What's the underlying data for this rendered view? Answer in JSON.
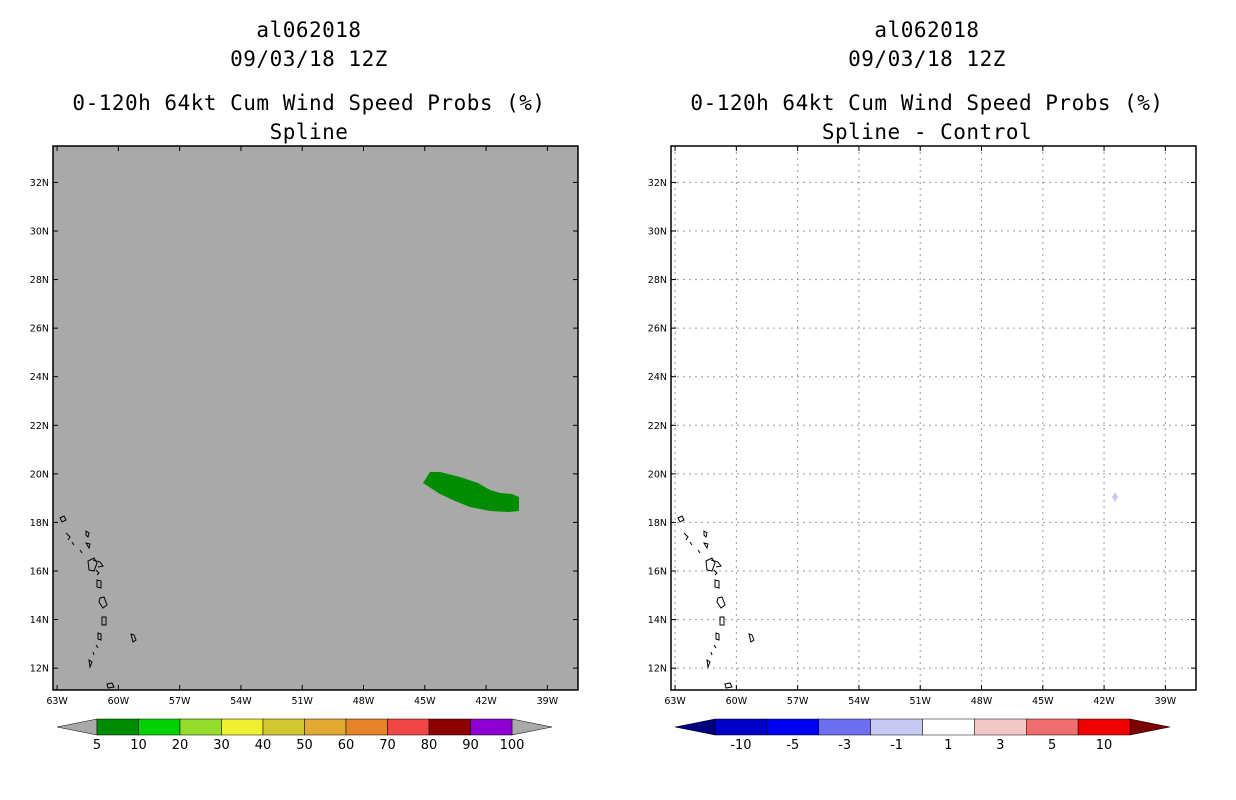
{
  "left_panel": {
    "storm_id": "al062018",
    "datetime": "09/03/18 12Z",
    "product": "0-120h 64kt Cum Wind Speed Probs (%)",
    "subtitle": "Spline",
    "background_color": "#a9a9a9",
    "colorbar_labels": [
      "5",
      "10",
      "20",
      "30",
      "40",
      "50",
      "60",
      "70",
      "80",
      "90",
      "100"
    ],
    "colorbar_colors": [
      "#008c00",
      "#00d200",
      "#96dc2d",
      "#f0f032",
      "#d2c832",
      "#e1aa32",
      "#e68228",
      "#f04646",
      "#8c0000",
      "#8c00d2"
    ],
    "probability_feature_color": "#008c00"
  },
  "right_panel": {
    "storm_id": "al062018",
    "datetime": "09/03/18 12Z",
    "product": "0-120h 64kt Cum Wind Speed Probs (%)",
    "subtitle": "Spline - Control",
    "background_color": "#ffffff",
    "colorbar_labels": [
      "-10",
      "-5",
      "-3",
      "-1",
      "1",
      "3",
      "5",
      "10"
    ],
    "colorbar_colors": [
      "#0000c8",
      "#0000f0",
      "#6e6ef0",
      "#c8c8f5",
      "#ffffff",
      "#f5c8c8",
      "#f06e6e",
      "#f00000"
    ],
    "colorbar_end_colors": [
      "#00007d",
      "#7d0000"
    ],
    "difference_feature_color": "#c8c8f5"
  },
  "axes": {
    "lat_labels": [
      "32N",
      "30N",
      "28N",
      "26N",
      "24N",
      "22N",
      "20N",
      "18N",
      "16N",
      "14N",
      "12N"
    ],
    "lon_labels": [
      "63W",
      "60W",
      "57W",
      "54W",
      "51W",
      "48W",
      "45W",
      "42W",
      "39W"
    ],
    "lat_values": [
      32,
      30,
      28,
      26,
      24,
      22,
      20,
      18,
      16,
      14,
      12
    ],
    "lon_values": [
      -63,
      -60,
      -57,
      -54,
      -51,
      -48,
      -45,
      -42,
      -39
    ],
    "lat_range": [
      11.1,
      33.5
    ],
    "lon_range": [
      -63.2,
      -37.5
    ]
  }
}
